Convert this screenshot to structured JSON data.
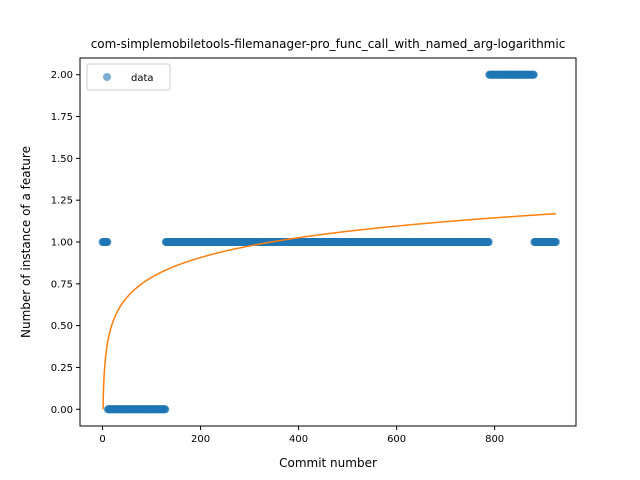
{
  "chart_data": {
    "type": "scatter",
    "title": "com-simplemobiletools-filemanager-pro_func_call_with_named_arg-logarithmic",
    "xlabel": "Commit number",
    "ylabel": "Number of instance of a feature",
    "xlim": [
      -46,
      966
    ],
    "ylim": [
      -0.1,
      2.1
    ],
    "xticks": [
      0,
      200,
      400,
      600,
      800
    ],
    "yticks": [
      0.0,
      0.25,
      0.5,
      0.75,
      1.0,
      1.25,
      1.5,
      1.75,
      2.0
    ],
    "ytick_labels": [
      "0.00",
      "0.25",
      "0.50",
      "0.75",
      "1.00",
      "1.25",
      "1.50",
      "1.75",
      "2.00"
    ],
    "legend": {
      "location": "upper-left",
      "entries": [
        "data"
      ]
    },
    "colors": {
      "data": "#1f77b4",
      "fit": "#ff7f0e"
    },
    "series": [
      {
        "name": "data",
        "kind": "scatter",
        "segments": [
          {
            "x_start": 0,
            "x_end": 10,
            "y": 1
          },
          {
            "x_start": 11,
            "x_end": 128,
            "y": 0
          },
          {
            "x_start": 129,
            "x_end": 788,
            "y": 1
          },
          {
            "x_start": 789,
            "x_end": 880,
            "y": 2
          },
          {
            "x_start": 881,
            "x_end": 925,
            "y": 1
          }
        ]
      },
      {
        "name": "logarithmic fit",
        "kind": "line",
        "formula": "a + b*ln(x)",
        "a": 0,
        "b": 0.1712,
        "x_range": [
          1,
          925
        ]
      }
    ]
  }
}
